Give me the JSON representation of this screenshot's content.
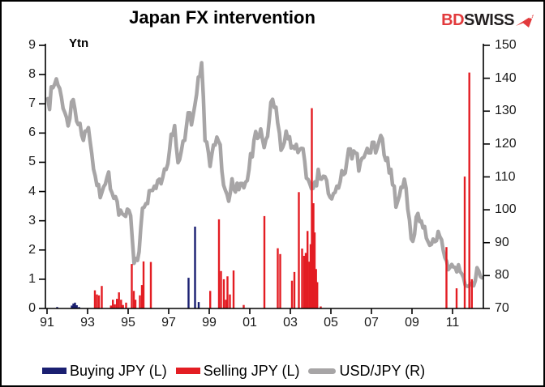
{
  "title": "Japan FX intervention",
  "logo": {
    "part1": "BD",
    "part2": "SWISS"
  },
  "chart_data": {
    "type": "combo",
    "title": "Japan FX intervention",
    "unit_label": "Ytn",
    "grid": false,
    "legend_position": "bottom-left",
    "left_axis": {
      "label": "Ytn",
      "min": 0,
      "max": 9,
      "ticks": [
        0,
        1,
        2,
        3,
        4,
        5,
        6,
        7,
        8,
        9
      ]
    },
    "right_axis": {
      "min": 70,
      "max": 150,
      "ticks": [
        70,
        80,
        90,
        100,
        110,
        120,
        130,
        140,
        150
      ]
    },
    "x_axis": {
      "tick_labels": [
        "91",
        "93",
        "95",
        "97",
        "99",
        "01",
        "03",
        "05",
        "07",
        "09",
        "11"
      ],
      "tick_years": [
        1991,
        1993,
        1995,
        1997,
        1999,
        2001,
        2003,
        2005,
        2007,
        2009,
        2011
      ],
      "range": [
        1990.92,
        2012.52
      ]
    },
    "series": [
      {
        "name": "Buying JPY (L)",
        "type": "bar",
        "axis": "left",
        "color": "#1a1f71",
        "points": [
          [
            1991.5,
            0.05
          ],
          [
            1992.22,
            0.1
          ],
          [
            1992.3,
            0.17
          ],
          [
            1992.38,
            0.2
          ],
          [
            1992.47,
            0.11
          ],
          [
            1992.58,
            0.05
          ],
          [
            1997.98,
            1.05
          ],
          [
            1998.3,
            2.8
          ],
          [
            1998.48,
            0.22
          ]
        ]
      },
      {
        "name": "Selling JPY (L)",
        "type": "bar",
        "axis": "left",
        "color": "#e31d23",
        "points": [
          [
            1993.36,
            0.62
          ],
          [
            1993.46,
            0.48
          ],
          [
            1993.56,
            0.45
          ],
          [
            1993.7,
            0.77
          ],
          [
            1994.15,
            0.1
          ],
          [
            1994.25,
            0.3
          ],
          [
            1994.35,
            0.14
          ],
          [
            1994.45,
            0.33
          ],
          [
            1994.55,
            0.55
          ],
          [
            1994.65,
            0.3
          ],
          [
            1994.75,
            0.12
          ],
          [
            1994.9,
            0.2
          ],
          [
            1995.18,
            1.52
          ],
          [
            1995.28,
            0.6
          ],
          [
            1995.36,
            0.3
          ],
          [
            1995.58,
            0.45
          ],
          [
            1995.68,
            0.8
          ],
          [
            1995.76,
            1.61
          ],
          [
            1996.12,
            1.59
          ],
          [
            1999.05,
            0.6
          ],
          [
            1999.48,
            3.05
          ],
          [
            1999.58,
            1.28
          ],
          [
            1999.72,
            1.0
          ],
          [
            1999.82,
            0.3
          ],
          [
            1999.9,
            1.1
          ],
          [
            2000.02,
            0.48
          ],
          [
            2000.2,
            1.3
          ],
          [
            2000.7,
            0.12
          ],
          [
            2001.72,
            3.16
          ],
          [
            2002.38,
            2.06
          ],
          [
            2002.5,
            1.86
          ],
          [
            2003.08,
            0.95
          ],
          [
            2003.2,
            1.25
          ],
          [
            2003.42,
            3.98
          ],
          [
            2003.58,
            2.05
          ],
          [
            2003.68,
            1.8
          ],
          [
            2003.76,
            1.9
          ],
          [
            2003.85,
            2.65
          ],
          [
            2003.93,
            1.6
          ],
          [
            2004.0,
            2.2
          ],
          [
            2004.06,
            6.85
          ],
          [
            2004.14,
            3.6
          ],
          [
            2004.2,
            2.6
          ],
          [
            2004.27,
            1.35
          ],
          [
            2004.33,
            0.9
          ],
          [
            2004.5,
            0.07
          ],
          [
            2010.7,
            2.1
          ],
          [
            2011.2,
            0.69
          ],
          [
            2011.6,
            4.51
          ],
          [
            2011.83,
            8.07
          ],
          [
            2011.95,
            1.0
          ]
        ]
      },
      {
        "name": "USD/JPY (R)",
        "type": "line",
        "axis": "right",
        "color": "#a7a5a6",
        "start_year": 1991,
        "monthly": [
          133.8,
          130.5,
          137.4,
          137.1,
          138.2,
          139.8,
          137.9,
          136.9,
          134.3,
          130.8,
          129.6,
          128.1,
          125.5,
          127.7,
          132.8,
          133.5,
          130.6,
          126.9,
          125.9,
          126.3,
          122.7,
          121.1,
          123.9,
          124.0,
          125.0,
          120.8,
          117.0,
          112.4,
          110.3,
          107.4,
          107.7,
          103.7,
          105.3,
          107.0,
          107.8,
          109.9,
          111.5,
          106.3,
          105.1,
          103.5,
          104.0,
          102.5,
          98.4,
          99.9,
          98.8,
          98.4,
          98.0,
          100.2,
          99.8,
          98.2,
          90.8,
          83.7,
          85.2,
          84.6,
          87.2,
          94.6,
          100.5,
          100.8,
          101.9,
          101.9,
          105.8,
          105.9,
          105.9,
          107.2,
          106.5,
          108.9,
          109.3,
          107.9,
          109.9,
          112.4,
          112.3,
          114.0,
          118.0,
          123.0,
          122.7,
          125.6,
          119.2,
          114.3,
          115.3,
          117.9,
          120.9,
          121.1,
          125.4,
          129.5,
          129.5,
          125.8,
          128.8,
          131.8,
          135.1,
          140.3,
          140.7,
          144.7,
          134.6,
          121.0,
          120.6,
          117.4,
          113.2,
          116.7,
          119.7,
          119.7,
          122.1,
          120.8,
          119.8,
          111.8,
          107.5,
          106.0,
          104.7,
          102.6,
          105.2,
          109.4,
          106.3,
          105.4,
          108.1,
          106.1,
          108.0,
          108.0,
          106.7,
          108.4,
          108.9,
          112.2,
          117.1,
          116.1,
          121.2,
          123.8,
          121.7,
          122.2,
          124.6,
          121.5,
          118.9,
          121.3,
          122.3,
          127.3,
          132.7,
          133.6,
          131.1,
          131.2,
          126.4,
          123.4,
          118.1,
          119.0,
          120.5,
          123.9,
          121.6,
          122.2,
          118.8,
          119.3,
          118.6,
          119.9,
          117.4,
          118.3,
          118.7,
          118.6,
          114.8,
          109.6,
          109.2,
          107.9,
          106.4,
          106.5,
          108.5,
          107.3,
          112.3,
          109.4,
          109.3,
          110.2,
          110.1,
          108.9,
          104.9,
          103.8,
          103.3,
          104.9,
          105.3,
          107.2,
          106.6,
          108.6,
          111.9,
          110.7,
          111.2,
          114.9,
          118.5,
          118.5,
          115.5,
          117.9,
          117.3,
          117.1,
          111.8,
          114.6,
          115.7,
          115.9,
          117.2,
          118.7,
          117.3,
          117.3,
          120.5,
          120.5,
          117.3,
          118.9,
          120.8,
          122.6,
          121.6,
          116.7,
          115.0,
          115.8,
          111.2,
          112.3,
          107.6,
          107.2,
          100.8,
          102.5,
          104.2,
          106.9,
          106.8,
          109.3,
          106.6,
          100.2,
          96.9,
          91.2,
          90.4,
          92.5,
          97.8,
          98.9,
          96.4,
          96.6,
          94.5,
          94.9,
          91.4,
          90.3,
          89.2,
          89.5,
          91.1,
          90.3,
          90.6,
          93.4,
          91.8,
          90.9,
          87.7,
          85.4,
          84.4,
          81.8,
          82.5,
          83.4,
          82.6,
          82.5,
          81.1,
          83.3,
          81.2,
          80.5,
          79.4,
          77.1,
          76.8,
          76.7,
          77.5,
          77.8,
          76.9,
          78.5,
          82.4,
          81.4,
          79.7,
          79.3
        ]
      }
    ],
    "legend": [
      "Buying JPY (L)",
      "Selling JPY (L)",
      "USD/JPY (R)"
    ]
  }
}
